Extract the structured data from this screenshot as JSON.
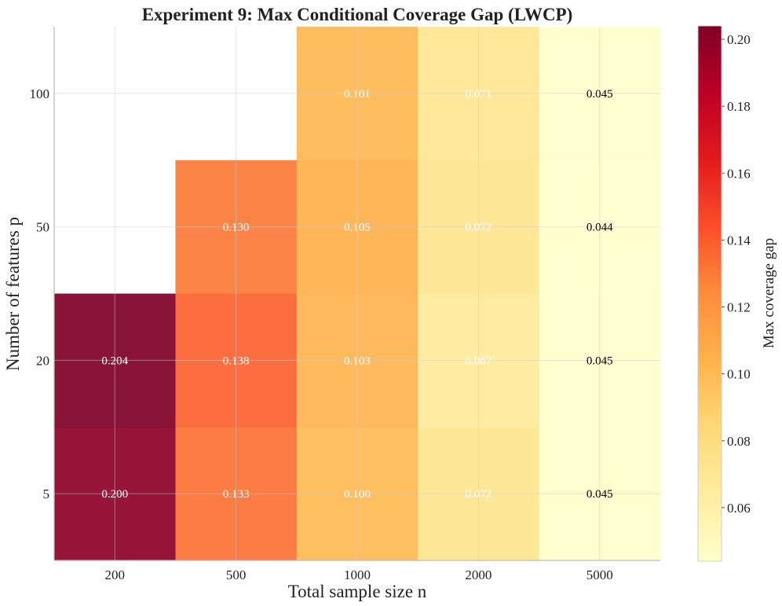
{
  "chart_data": {
    "type": "heatmap",
    "title": "Experiment 9: Max Conditional Coverage Gap (LWCP)",
    "xlabel": "Total sample size n",
    "ylabel": "Number of features p",
    "x_categories": [
      "200",
      "500",
      "1000",
      "2000",
      "5000"
    ],
    "y_categories": [
      "5",
      "20",
      "50",
      "100"
    ],
    "values": [
      [
        0.2,
        0.133,
        0.1,
        0.072,
        0.045
      ],
      [
        0.204,
        0.138,
        0.103,
        0.067,
        0.045
      ],
      [
        null,
        0.13,
        0.105,
        0.072,
        0.044
      ],
      [
        null,
        null,
        0.101,
        0.071,
        0.045
      ]
    ],
    "labels": [
      [
        "0.200",
        "0.133",
        "0.100",
        "0.072",
        "0.045"
      ],
      [
        "0.204",
        "0.138",
        "0.103",
        "0.067",
        "0.045"
      ],
      [
        "",
        "0.130",
        "0.105",
        "0.072",
        "0.044"
      ],
      [
        "",
        "",
        "0.101",
        "0.071",
        "0.045"
      ]
    ],
    "colorbar": {
      "label": "Max coverage gap",
      "vmin": 0.044,
      "vmax": 0.204,
      "ticks": [
        0.06,
        0.08,
        0.1,
        0.12,
        0.14,
        0.16,
        0.18,
        0.2
      ],
      "tick_labels": [
        "0.06",
        "0.08",
        "0.10",
        "0.12",
        "0.14",
        "0.16",
        "0.18",
        "0.20"
      ],
      "colormap": "YlOrRd",
      "stops": [
        "#ffffcc",
        "#ffeda0",
        "#fed976",
        "#feb24c",
        "#fd8d3c",
        "#fc4e2a",
        "#e31a1c",
        "#bd0026",
        "#800026"
      ]
    },
    "grid": true
  }
}
